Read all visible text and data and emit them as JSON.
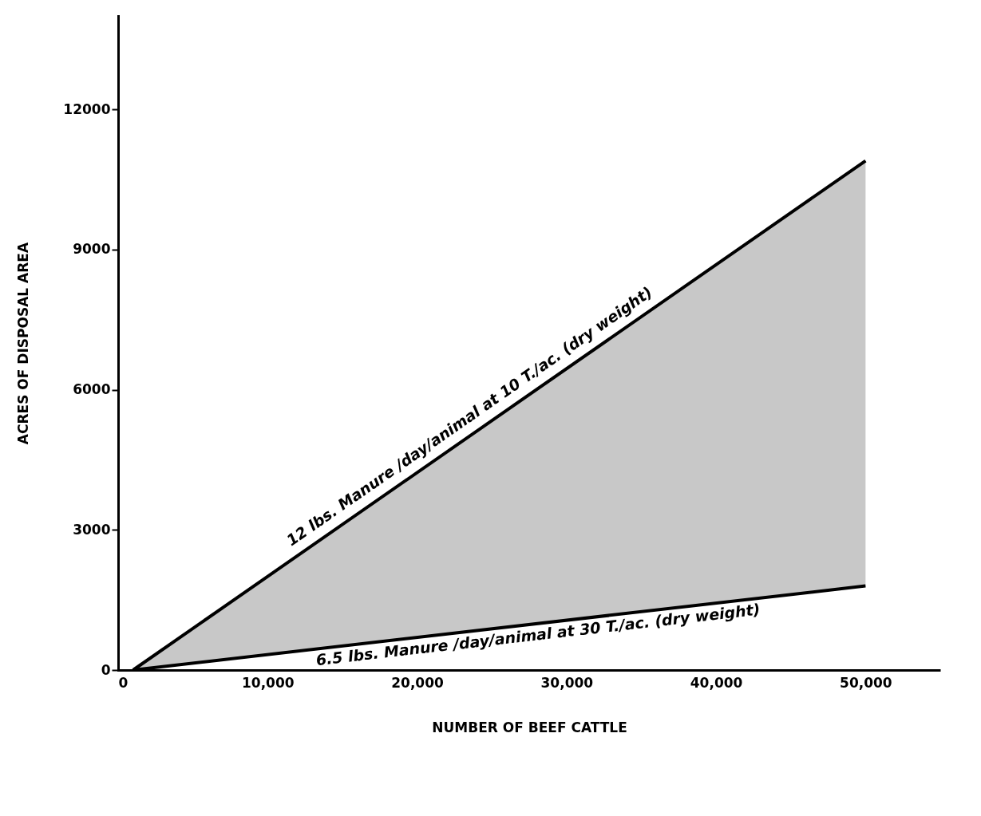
{
  "chart_data": {
    "type": "line",
    "xlabel": "NUMBER OF BEEF CATTLE",
    "ylabel": "ACRES OF DISPOSAL AREA",
    "x": [
      1000,
      50000
    ],
    "series": [
      {
        "color": "#000000",
        "values": [
          0,
          10900
        ],
        "lower": [
          0,
          1800
        ],
        "upper": [
          0,
          10900
        ]
      },
      {
        "color": "#000000",
        "values": [
          0,
          1800
        ]
      }
    ],
    "xlim": [
      0,
      55000
    ],
    "xticks": [
      0,
      {
        "value": 10000,
        "label": "10,000"
      },
      {
        "value": 20000,
        "label": "20,000"
      },
      {
        "value": 30000,
        "label": "30,000"
      },
      {
        "value": 40000,
        "label": "40,000"
      },
      {
        "value": 50000,
        "label": "50,000"
      }
    ],
    "ylim": [
      0,
      14000
    ],
    "yticks": [
      0,
      3000,
      6000,
      9000,
      12000
    ],
    "annotations": [
      {
        "text": "12 lbs. Manure /day/animal at 10 T./ac. (dry weight)",
        "x": 24000,
        "y": 5200
      },
      {
        "text": "6.5 lbs. Manure /day/animal at 30 T./ac. (dry weight)",
        "x": 28000,
        "y": 1000
      }
    ],
    "grid": false,
    "marker": "none",
    "line_style": "solid"
  }
}
